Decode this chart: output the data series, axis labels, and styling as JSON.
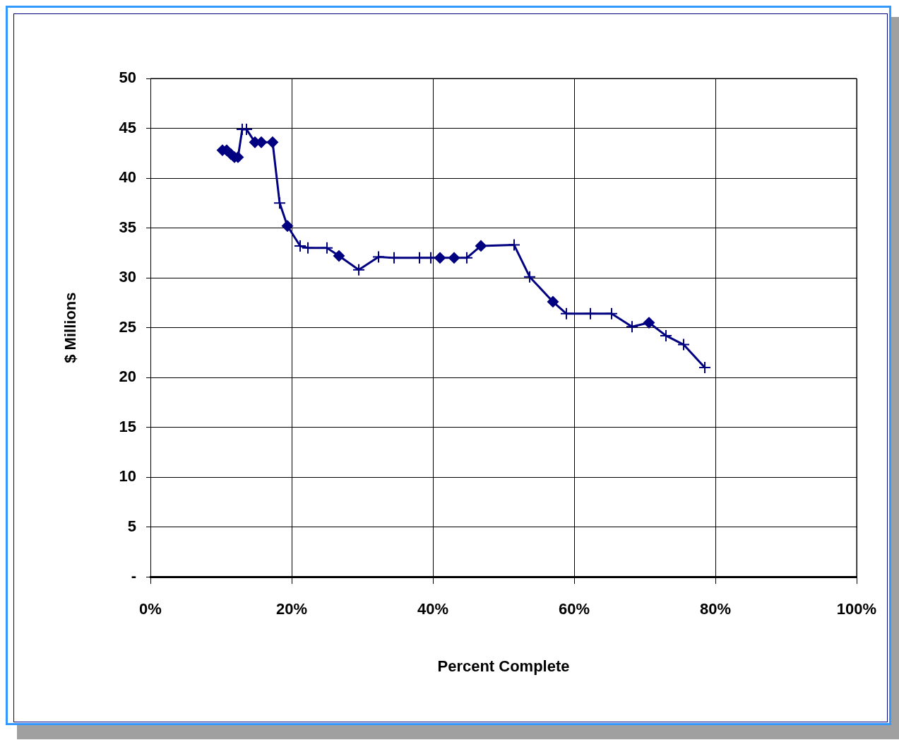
{
  "chart_data": {
    "type": "line",
    "xlabel": "Percent Complete",
    "ylabel": "$ Millions",
    "xlim": [
      0,
      100
    ],
    "xticks": [
      {
        "value": 0,
        "label": "0%"
      },
      {
        "value": 20,
        "label": "20%"
      },
      {
        "value": 40,
        "label": "40%"
      },
      {
        "value": 60,
        "label": "60%"
      },
      {
        "value": 80,
        "label": "80%"
      },
      {
        "value": 100,
        "label": "100%"
      }
    ],
    "ylim": [
      0,
      50
    ],
    "yticks": [
      {
        "value": 0,
        "label": "-"
      },
      5,
      10,
      15,
      20,
      25,
      30,
      35,
      40,
      45,
      50
    ],
    "grid": true,
    "legend": false,
    "line_style": "solid",
    "series": [
      {
        "color": "#000080",
        "marker": "none",
        "x": [
          10.2,
          10.8,
          11.4,
          11.9,
          12.4,
          13.0,
          13.6,
          14.8,
          15.7,
          17.3,
          18.3,
          19.4,
          21.2,
          22.3,
          25.0,
          26.7,
          29.5,
          32.3,
          34.5,
          38.1,
          39.7,
          41.0,
          43.0,
          44.8,
          46.8,
          51.5,
          53.7,
          57.0,
          58.9,
          62.3,
          65.3,
          68.2,
          70.6,
          73.0,
          75.5,
          78.5
        ],
        "values": [
          42.8,
          42.8,
          42.4,
          42.1,
          42.1,
          44.9,
          44.9,
          43.6,
          43.6,
          43.6,
          37.5,
          35.2,
          33.2,
          33.0,
          33.0,
          32.2,
          30.8,
          32.1,
          32.0,
          32.0,
          32.0,
          32.0,
          32.0,
          32.0,
          33.2,
          33.3,
          30.1,
          27.6,
          26.4,
          26.4,
          26.4,
          25.1,
          25.5,
          24.2,
          23.3,
          21.0
        ]
      },
      {
        "type": "scatter",
        "color": "#000080",
        "marker": "diamond",
        "x": [
          10.2,
          10.8,
          11.4,
          11.9,
          12.4,
          14.8,
          15.7,
          17.3,
          19.4,
          26.7,
          41.0,
          43.0,
          46.8,
          57.0,
          70.6
        ],
        "values": [
          42.8,
          42.8,
          42.4,
          42.1,
          42.1,
          43.6,
          43.6,
          43.6,
          35.2,
          32.2,
          32.0,
          32.0,
          33.2,
          27.6,
          25.5
        ]
      },
      {
        "type": "scatter",
        "color": "#000080",
        "marker": "cross",
        "x": [
          13.0,
          13.6,
          18.3,
          21.2,
          22.3,
          25.0,
          29.5,
          32.3,
          34.5,
          38.1,
          39.7,
          44.8,
          51.5,
          53.7,
          58.9,
          62.3,
          65.3,
          68.2,
          73.0,
          75.5,
          78.5
        ],
        "values": [
          44.9,
          44.9,
          37.5,
          33.2,
          33.0,
          33.0,
          30.8,
          32.1,
          32.0,
          32.0,
          32.0,
          32.0,
          33.3,
          30.1,
          26.4,
          26.4,
          26.4,
          25.1,
          24.2,
          23.3,
          21.0
        ]
      }
    ]
  }
}
